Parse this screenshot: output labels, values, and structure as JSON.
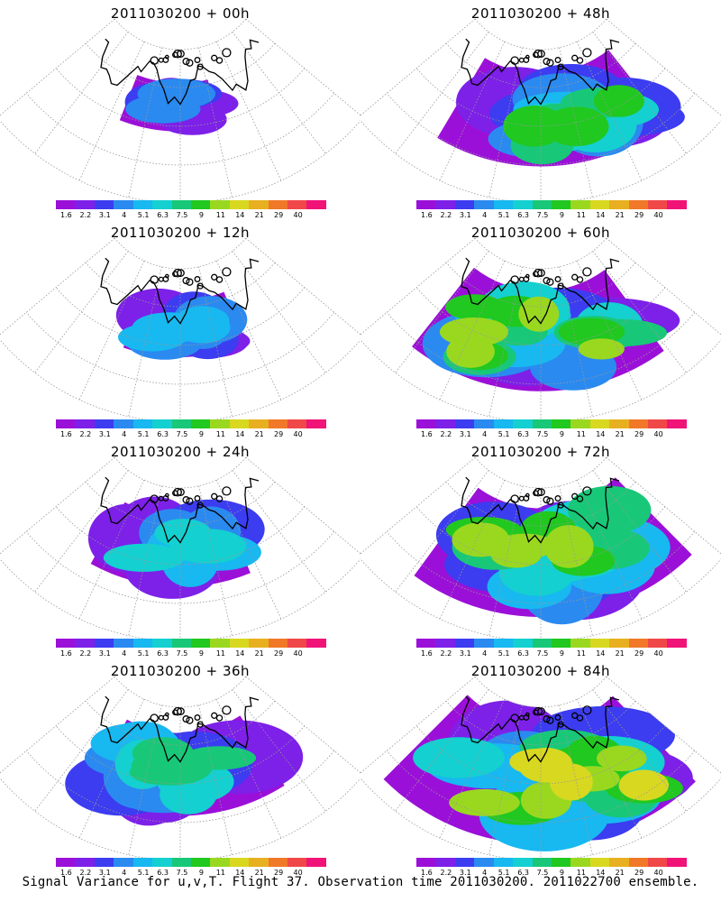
{
  "footer": "Signal Variance for u,v,T. Flight 37. Observation time 2011030200. 2011022700 ensemble.",
  "colorbar": {
    "labels": [
      "1.6",
      "2.2",
      "3.1",
      "4",
      "5.1",
      "6.3",
      "7.5",
      "9",
      "11",
      "14",
      "21",
      "29",
      "40"
    ],
    "colors": [
      "#9b10d8",
      "#7d20e8",
      "#3c3cf0",
      "#2a8af0",
      "#18b8f0",
      "#14d0d0",
      "#18c878",
      "#20c820",
      "#9ad820",
      "#d8d820",
      "#e8b020",
      "#f07828",
      "#f04848",
      "#f01478"
    ]
  },
  "panels": [
    {
      "title": "2011030200 + 00h",
      "lead_hours": 0,
      "intensity": 0.12
    },
    {
      "title": "2011030200 + 48h",
      "lead_hours": 48,
      "intensity": 0.55
    },
    {
      "title": "2011030200 + 12h",
      "lead_hours": 12,
      "intensity": 0.2
    },
    {
      "title": "2011030200 + 60h",
      "lead_hours": 60,
      "intensity": 0.62
    },
    {
      "title": "2011030200 + 24h",
      "lead_hours": 24,
      "intensity": 0.33
    },
    {
      "title": "2011030200 + 72h",
      "lead_hours": 72,
      "intensity": 0.7
    },
    {
      "title": "2011030200 + 36h",
      "lead_hours": 36,
      "intensity": 0.45
    },
    {
      "title": "2011030200 + 84h",
      "lead_hours": 84,
      "intensity": 0.8
    }
  ],
  "chart_data": {
    "type": "heatmap",
    "colorbar_levels": [
      1.6,
      2.2,
      3.1,
      4,
      5.1,
      6.3,
      7.5,
      9,
      11,
      14,
      21,
      29,
      40
    ],
    "panels": [
      "2011030200 + 00h",
      "2011030200 + 12h",
      "2011030200 + 24h",
      "2011030200 + 36h",
      "2011030200 + 48h",
      "2011030200 + 60h",
      "2011030200 + 72h",
      "2011030200 + 84h"
    ],
    "layout": "4 rows x 2 columns"
  }
}
